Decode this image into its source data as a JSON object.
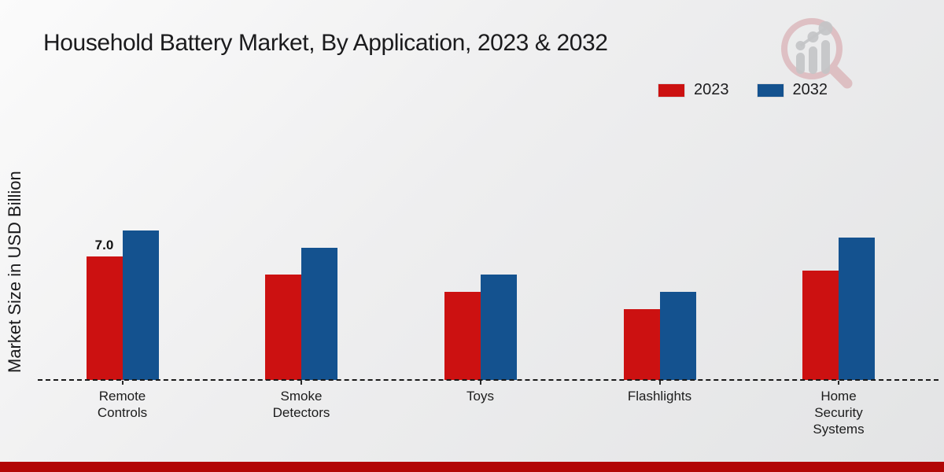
{
  "header": {
    "title": "Household Battery Market, By Application, 2023 & 2032"
  },
  "axis": {
    "y_label": "Market Size in USD Billion"
  },
  "legend": {
    "items": [
      {
        "label": "2023",
        "color": "#cc1111"
      },
      {
        "label": "2032",
        "color": "#14528f"
      }
    ]
  },
  "icons": {
    "logo": "magnifier-growth-chart-logo"
  },
  "colors": {
    "series_2023": "#cc1111",
    "series_2032": "#14528f",
    "footer_bar": "#b20606",
    "baseline": "#1a1a1a"
  },
  "chart_data": {
    "type": "bar",
    "title": "Household Battery Market, By Application, 2023 & 2032",
    "xlabel": "",
    "ylabel": "Market Size in USD Billion",
    "unit": "USD Billion",
    "categories": [
      "Remote\nControls",
      "Smoke\nDetectors",
      "Toys",
      "Flashlights",
      "Home\nSecurity\nSystems"
    ],
    "series": [
      {
        "name": "2023",
        "color": "#cc1111",
        "values": [
          7.0,
          6.0,
          5.0,
          4.0,
          6.2
        ]
      },
      {
        "name": "2032",
        "color": "#14528f",
        "values": [
          8.5,
          7.5,
          6.0,
          5.0,
          8.1
        ]
      }
    ],
    "annotations": [
      {
        "series_index": 0,
        "category_index": 0,
        "text": "7.0"
      }
    ],
    "ylim": [
      0,
      9.5
    ],
    "grid": false,
    "legend_position": "top-right",
    "baseline_style": "dashed"
  }
}
